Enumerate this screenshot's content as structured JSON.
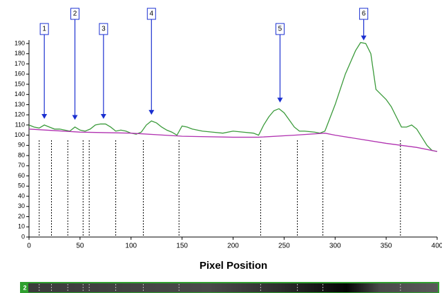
{
  "chart_data": {
    "type": "line",
    "xlabel": "Pixel Position",
    "xlim": [
      0,
      400
    ],
    "xticks": [
      0,
      50,
      100,
      150,
      200,
      250,
      300,
      350,
      400
    ],
    "ylim": [
      0,
      190
    ],
    "yticks": [
      0,
      10,
      20,
      30,
      40,
      50,
      60,
      70,
      80,
      90,
      100,
      110,
      120,
      130,
      140,
      150,
      160,
      170,
      180,
      190
    ],
    "series": [
      {
        "color": "#3a9a3a",
        "x": [
          0,
          5,
          10,
          15,
          20,
          25,
          30,
          35,
          40,
          45,
          50,
          55,
          60,
          65,
          70,
          75,
          80,
          85,
          90,
          95,
          100,
          105,
          110,
          115,
          120,
          125,
          130,
          135,
          140,
          145,
          150,
          155,
          160,
          170,
          180,
          190,
          200,
          210,
          220,
          225,
          230,
          235,
          240,
          245,
          250,
          255,
          260,
          265,
          270,
          280,
          285,
          290,
          300,
          310,
          320,
          325,
          330,
          335,
          340,
          345,
          350,
          355,
          360,
          365,
          370,
          375,
          380,
          385,
          390,
          395,
          400
        ],
        "values": [
          110,
          108,
          107,
          110,
          108,
          106,
          106,
          105,
          104,
          108,
          105,
          104,
          106,
          110,
          111,
          111,
          108,
          104,
          105,
          104,
          102,
          101,
          103,
          110,
          114,
          112,
          108,
          105,
          103,
          100,
          109,
          108,
          106,
          104,
          103,
          102,
          104,
          103,
          102,
          100,
          110,
          118,
          124,
          126,
          122,
          115,
          108,
          104,
          104,
          103,
          102,
          104,
          130,
          160,
          183,
          191,
          190,
          180,
          145,
          140,
          135,
          128,
          118,
          108,
          108,
          110,
          106,
          98,
          90,
          85,
          84
        ]
      },
      {
        "color": "#b030b0",
        "x": [
          0,
          50,
          100,
          150,
          200,
          225,
          260,
          290,
          300,
          350,
          380,
          400
        ],
        "values": [
          106,
          103,
          102,
          99,
          98,
          98,
          100,
          102,
          100,
          92,
          88,
          84
        ]
      }
    ],
    "dividers": [
      10,
      22,
      38,
      53,
      59,
      85,
      112,
      147,
      227,
      263,
      288,
      364
    ],
    "annotations": [
      {
        "label": "1",
        "x": 15,
        "y": 114
      },
      {
        "label": "2",
        "x": 45,
        "y": 113
      },
      {
        "label": "3",
        "x": 73,
        "y": 114
      },
      {
        "label": "4",
        "x": 120,
        "y": 118
      },
      {
        "label": "5",
        "x": 246,
        "y": 130
      },
      {
        "label": "6",
        "x": 328,
        "y": 191
      }
    ],
    "strip_label": "2"
  }
}
